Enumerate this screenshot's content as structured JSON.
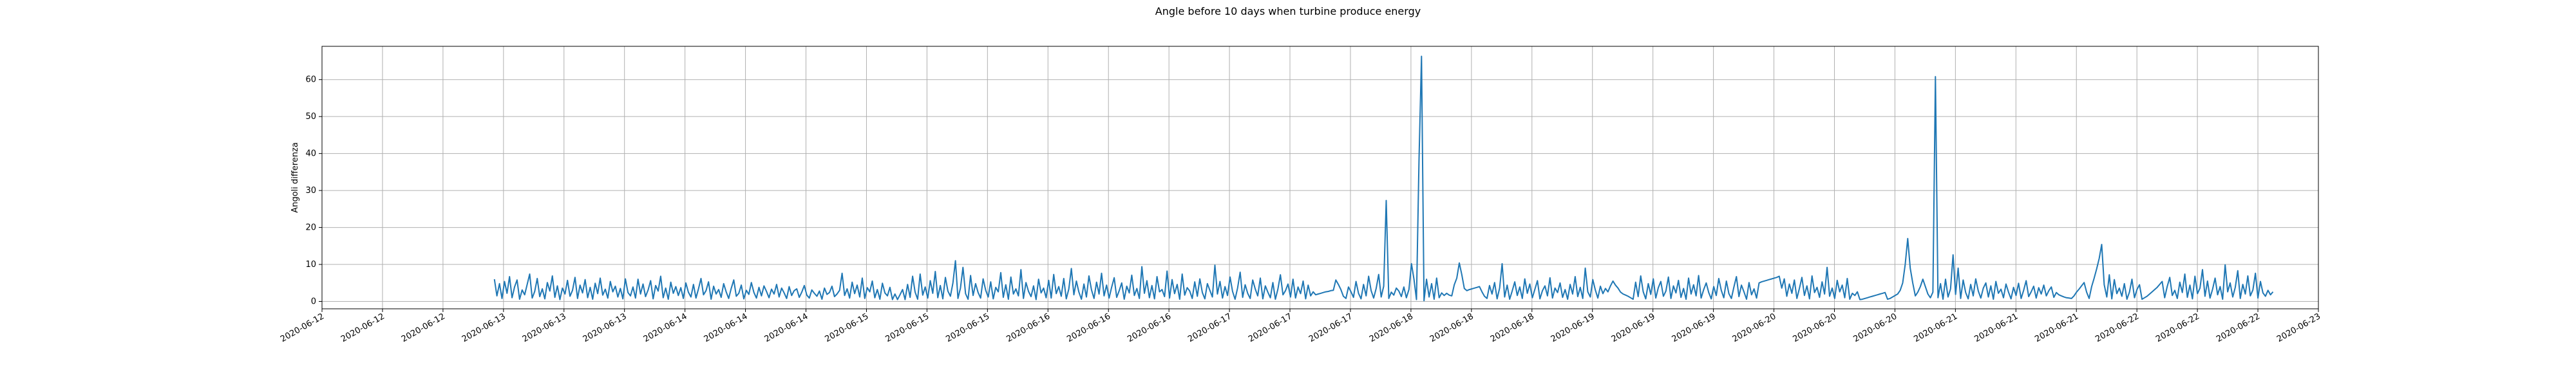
{
  "chart_data": {
    "type": "line",
    "title": "Angle before 10 days when turbine produce energy",
    "xlabel": "",
    "ylabel": "Angoli differenza",
    "ylim": [
      -2,
      69
    ],
    "yticks": [
      0,
      10,
      20,
      30,
      40,
      50,
      60
    ],
    "xticks": [
      "2020-06-12",
      "2020-06-12",
      "2020-06-12",
      "2020-06-13",
      "2020-06-13",
      "2020-06-13",
      "2020-06-14",
      "2020-06-14",
      "2020-06-14",
      "2020-06-15",
      "2020-06-15",
      "2020-06-15",
      "2020-06-16",
      "2020-06-16",
      "2020-06-16",
      "2020-06-17",
      "2020-06-17",
      "2020-06-17",
      "2020-06-18",
      "2020-06-18",
      "2020-06-18",
      "2020-06-19",
      "2020-06-19",
      "2020-06-19",
      "2020-06-20",
      "2020-06-20",
      "2020-06-20",
      "2020-06-21",
      "2020-06-21",
      "2020-06-21",
      "2020-06-22",
      "2020-06-22",
      "2020-06-22",
      "2020-06-23"
    ],
    "grid": true,
    "line_color": "#1f77b4",
    "series": [
      {
        "values": [
          6.0,
          1.5,
          4.8,
          0.8,
          5.4,
          2.2,
          6.7,
          1.0,
          3.9,
          5.8,
          0.6,
          3.1,
          1.8,
          4.6,
          7.4,
          0.9,
          2.7,
          6.2,
          1.3,
          3.4,
          0.7,
          5.1,
          2.8,
          6.9,
          1.1,
          4.2,
          0.5,
          3.6,
          2.0,
          5.7,
          1.4,
          3.0,
          6.5,
          0.8,
          4.4,
          2.3,
          5.9,
          1.0,
          3.8,
          0.6,
          4.9,
          2.1,
          6.3,
          1.7,
          3.3,
          0.9,
          5.4,
          2.6,
          4.1,
          1.2,
          3.5,
          0.7,
          6.1,
          2.4,
          1.5,
          3.9,
          0.9,
          6.0,
          2.0,
          4.7,
          1.3,
          3.1,
          5.6,
          0.7,
          4.3,
          2.8,
          6.8,
          1.0,
          3.6,
          0.6,
          5.2,
          2.2,
          4.0,
          1.6,
          3.7,
          0.8,
          5.0,
          2.5,
          1.2,
          4.6,
          0.9,
          3.4,
          6.2,
          1.8,
          2.9,
          5.3,
          0.6,
          4.1,
          2.0,
          3.2,
          1.1,
          4.8,
          2.6,
          0.8,
          3.5,
          5.8,
          1.4,
          2.2,
          4.4,
          0.7,
          3.0,
          1.9,
          5.1,
          2.4,
          0.9,
          3.8,
          1.5,
          4.2,
          2.7,
          1.0,
          3.3,
          2.0,
          4.6,
          1.2,
          3.6,
          2.3,
          0.8,
          4.0,
          1.6,
          2.9,
          3.4,
          1.1,
          2.5,
          4.3,
          1.7,
          0.9,
          3.1,
          2.2,
          1.4,
          2.8,
          0.6,
          3.6,
          1.9,
          2.4,
          4.1,
          1.3,
          2.0,
          3.0,
          7.6,
          1.6,
          3.4,
          0.9,
          5.2,
          2.1,
          4.4,
          1.2,
          6.3,
          0.8,
          3.7,
          2.6,
          5.5,
          1.0,
          3.2,
          0.6,
          4.9,
          2.3,
          1.5,
          3.8,
          0.5,
          2.0,
          0.5,
          1.8,
          3.2,
          0.5,
          4.6,
          1.1,
          6.8,
          2.5,
          0.6,
          7.4,
          1.7,
          3.9,
          0.9,
          5.6,
          2.2,
          8.1,
          1.0,
          4.3,
          0.7,
          6.5,
          2.8,
          1.4,
          5.0,
          11.0,
          0.8,
          3.6,
          9.2,
          2.1,
          0.6,
          7.0,
          1.6,
          4.8,
          2.4,
          0.9,
          6.1,
          3.0,
          1.2,
          5.3,
          0.7,
          3.8,
          2.6,
          7.8,
          1.1,
          4.5,
          0.6,
          6.6,
          2.0,
          3.4,
          1.5,
          8.6,
          0.8,
          5.1,
          2.7,
          1.3,
          4.2,
          0.5,
          6.0,
          2.3,
          3.6,
          1.0,
          5.7,
          0.9,
          7.3,
          2.1,
          4.0,
          1.4,
          6.2,
          0.7,
          3.3,
          8.9,
          1.8,
          5.5,
          2.5,
          0.6,
          4.7,
          1.2,
          6.9,
          3.1,
          0.8,
          5.2,
          2.0,
          7.6,
          1.5,
          4.4,
          0.9,
          3.8,
          6.4,
          1.1,
          2.9,
          5.0,
          0.6,
          4.1,
          2.3,
          7.1,
          1.6,
          3.5,
          0.8,
          9.4,
          2.2,
          5.6,
          1.0,
          4.3,
          0.7,
          6.7,
          2.6,
          3.2,
          1.3,
          8.2,
          0.9,
          5.9,
          2.1,
          4.6,
          0.6,
          7.4,
          1.7,
          3.7,
          2.8,
          0.8,
          5.3,
          1.4,
          6.1,
          2.4,
          0.7,
          4.8,
          3.0,
          1.2,
          9.8,
          2.0,
          5.4,
          0.9,
          4.0,
          1.6,
          6.6,
          2.7,
          0.6,
          3.6,
          7.9,
          1.1,
          4.5,
          2.2,
          0.8,
          5.8,
          3.4,
          1.5,
          6.3,
          0.7,
          4.2,
          2.5,
          1.0,
          5.1,
          0.6,
          3.3,
          7.2,
          1.8,
          2.9,
          4.7,
          1.2,
          6.0,
          0.9,
          3.9,
          2.1,
          5.5,
          0.7,
          4.4,
          1.5,
          2.6,
          1.8,
          2.0,
          2.2,
          2.4,
          2.6,
          2.7,
          2.9,
          3.0,
          5.8,
          4.6,
          3.2,
          1.4,
          0.8,
          3.9,
          2.6,
          1.1,
          5.4,
          2.2,
          0.7,
          4.6,
          1.5,
          6.8,
          2.9,
          0.9,
          3.5,
          7.3,
          1.2,
          4.1,
          27.3,
          0.8,
          2.5,
          1.7,
          3.6,
          2.8,
          1.3,
          3.9,
          1.0,
          3.2,
          10.2,
          6.0,
          0.5,
          38.0,
          66.3,
          0.2,
          6.0,
          1.2,
          4.8,
          0.6,
          6.3,
          1.0,
          2.3,
          1.6,
          2.2,
          1.7,
          1.5,
          4.5,
          6.3,
          10.4,
          7.2,
          3.5,
          2.9,
          3.2,
          3.4,
          3.6,
          3.8,
          4.0,
          2.6,
          1.4,
          0.8,
          4.3,
          2.0,
          5.1,
          0.7,
          3.6,
          10.2,
          1.2,
          4.4,
          0.6,
          2.8,
          5.3,
          1.6,
          3.9,
          0.8,
          6.1,
          2.2,
          4.7,
          1.0,
          3.3,
          5.6,
          0.7,
          2.9,
          4.2,
          1.5,
          6.4,
          0.9,
          3.6,
          2.4,
          5.0,
          1.1,
          3.2,
          0.6,
          4.6,
          2.0,
          6.7,
          1.3,
          3.8,
          0.8,
          9.0,
          2.6,
          1.2,
          5.9,
          3.1,
          0.9,
          4.1,
          2.1,
          3.5,
          2.6,
          4.2,
          5.5,
          4.4,
          3.6,
          2.5,
          2.0,
          1.7,
          1.4,
          1.0,
          0.6,
          5.2,
          1.3,
          6.9,
          2.6,
          0.7,
          4.8,
          1.9,
          6.1,
          0.9,
          3.7,
          5.4,
          1.4,
          2.8,
          6.6,
          0.8,
          4.2,
          2.3,
          5.7,
          1.1,
          3.5,
          0.6,
          6.3,
          2.0,
          4.5,
          1.5,
          7.0,
          0.9,
          3.2,
          5.0,
          2.4,
          0.7,
          4.0,
          1.6,
          6.2,
          3.0,
          1.0,
          5.5,
          2.1,
          0.8,
          3.9,
          6.7,
          1.3,
          4.4,
          2.6,
          0.6,
          5.1,
          1.8,
          3.4,
          0.9,
          5.0,
          5.3,
          5.5,
          5.7,
          5.9,
          6.1,
          6.3,
          6.5,
          6.8,
          3.6,
          6.1,
          1.4,
          4.7,
          2.2,
          5.8,
          0.8,
          3.5,
          6.5,
          1.6,
          4.2,
          0.7,
          6.9,
          2.4,
          3.8,
          1.1,
          5.3,
          2.0,
          9.2,
          1.4,
          3.6,
          0.8,
          5.7,
          2.6,
          4.4,
          1.0,
          6.2,
          0.6,
          2.2,
          1.6,
          2.6,
          0.5,
          0.6,
          0.8,
          1.0,
          1.2,
          1.4,
          1.6,
          1.8,
          2.0,
          2.2,
          2.4,
          0.6,
          0.8,
          1.2,
          1.6,
          2.0,
          3.0,
          5.0,
          10.0,
          17.0,
          9.0,
          5.0,
          1.5,
          2.5,
          4.0,
          6.0,
          4.0,
          2.0,
          1.0,
          2.5,
          60.8,
          1.0,
          4.8,
          0.6,
          6.0,
          1.2,
          3.4,
          12.6,
          1.9,
          9.0,
          0.8,
          5.8,
          2.4,
          0.7,
          4.6,
          1.5,
          6.1,
          2.8,
          0.9,
          3.6,
          5.0,
          1.2,
          4.2,
          0.6,
          5.4,
          2.2,
          3.3,
          1.0,
          4.7,
          2.5,
          0.7,
          3.8,
          1.6,
          4.9,
          0.8,
          3.0,
          5.6,
          1.3,
          2.6,
          4.1,
          0.9,
          3.7,
          2.0,
          4.4,
          1.5,
          2.9,
          3.9,
          1.1,
          2.4,
          1.8,
          1.5,
          1.2,
          1.0,
          0.9,
          0.8,
          1.5,
          2.5,
          3.3,
          4.2,
          5.1,
          2.5,
          0.8,
          4.0,
          6.3,
          8.8,
          11.6,
          15.4,
          4.5,
          1.2,
          7.2,
          0.7,
          5.9,
          2.1,
          3.6,
          1.4,
          4.8,
          0.6,
          2.5,
          6.0,
          1.0,
          3.2,
          4.5,
          0.6,
          1.0,
          1.4,
          2.0,
          2.6,
          3.2,
          3.8,
          4.6,
          5.4,
          1.0,
          4.0,
          6.5,
          1.6,
          3.0,
          0.8,
          5.2,
          2.4,
          7.4,
          1.1,
          4.4,
          0.7,
          6.8,
          2.1,
          3.6,
          8.6,
          1.4,
          5.5,
          0.9,
          3.3,
          6.3,
          1.8,
          4.0,
          0.6,
          9.9,
          2.6,
          5.0,
          1.2,
          3.8,
          8.3,
          0.8,
          4.6,
          2.0,
          6.9,
          1.5,
          3.1,
          7.6,
          0.9,
          5.4,
          2.3,
          1.4,
          3.0,
          1.8,
          2.6
        ]
      }
    ]
  }
}
